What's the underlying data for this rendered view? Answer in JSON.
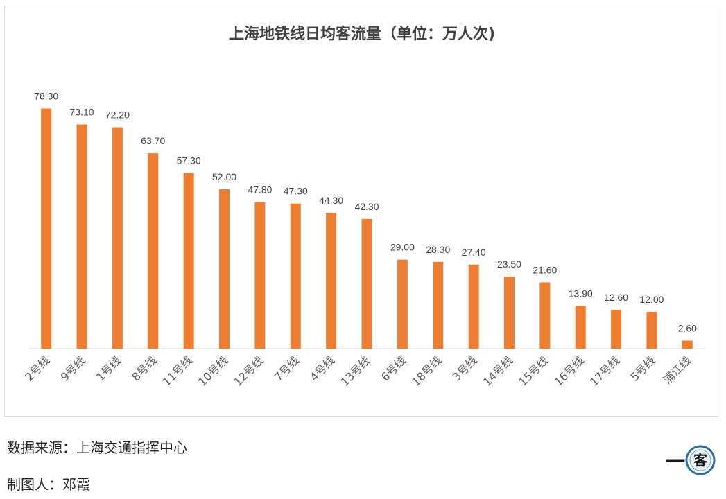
{
  "chart_data": {
    "type": "bar",
    "title": "上海地铁线日均客流量（单位：万人次)",
    "categories": [
      "2号线",
      "9号线",
      "1号线",
      "8号线",
      "11号线",
      "10号线",
      "12号线",
      "7号线",
      "4号线",
      "13号线",
      "6号线",
      "18号线",
      "3号线",
      "14号线",
      "15号线",
      "16号线",
      "17号线",
      "5号线",
      "浦江线"
    ],
    "values": [
      78.3,
      73.1,
      72.2,
      63.7,
      57.3,
      52.0,
      47.8,
      47.3,
      44.3,
      42.3,
      29.0,
      28.3,
      27.4,
      23.5,
      21.6,
      13.9,
      12.6,
      12.0,
      2.6
    ],
    "value_labels": [
      "78.30",
      "73.10",
      "72.20",
      "63.70",
      "57.30",
      "52.00",
      "47.80",
      "47.30",
      "44.30",
      "42.30",
      "29.00",
      "28.30",
      "27.40",
      "23.50",
      "21.60",
      "13.90",
      "12.60",
      "12.00",
      "2.60"
    ],
    "xlabel": "",
    "ylabel": "",
    "ylim": [
      0,
      80
    ],
    "grid": false,
    "bar_color": "#ED7D31"
  },
  "footer": {
    "source": "数据来源：上海交通指挥中心",
    "author": "制图人：邓霞"
  },
  "logo": {
    "dash": "一",
    "text": "客"
  }
}
